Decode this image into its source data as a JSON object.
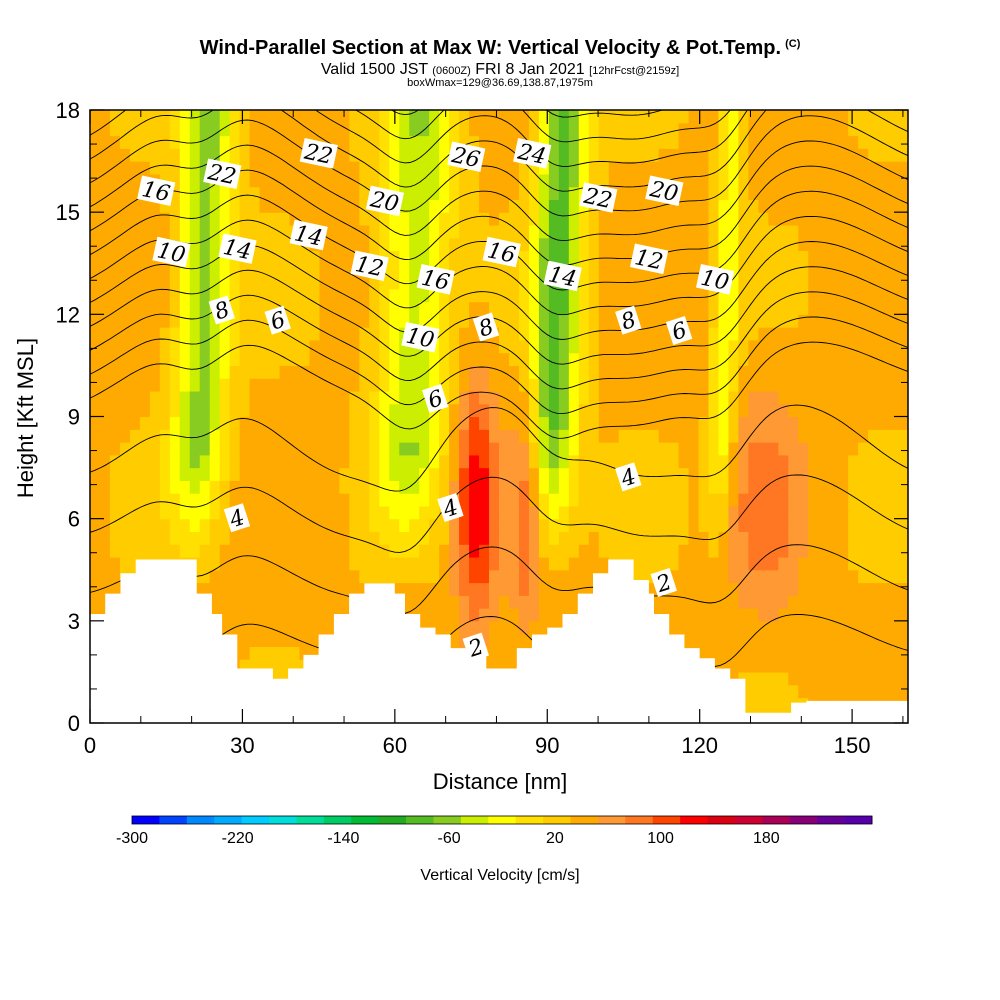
{
  "title": {
    "main": "Wind-Parallel Section at Max W: Vertical Velocity & Pot.Temp.",
    "copyright": "(C)",
    "valid_prefix": "Valid 1500 JST",
    "valid_utc": "(0600Z)",
    "valid_date": "FRI 8 Jan 2021",
    "forecast": "[12hrFcst@2159z]",
    "box_info": "boxWmax=129@36.69,138.87,1975m"
  },
  "chart_data": {
    "type": "heatmap",
    "xlabel": "Distance [nm]",
    "ylabel": "Height [Kft MSL]",
    "xlim": [
      0,
      161
    ],
    "ylim": [
      0,
      18
    ],
    "x_ticks": [
      "0",
      "30",
      "60",
      "90",
      "120",
      "150"
    ],
    "x_tick_values": [
      0,
      30,
      60,
      90,
      120,
      150
    ],
    "y_ticks": [
      "0",
      "3",
      "6",
      "9",
      "12",
      "15",
      "18"
    ],
    "y_tick_values": [
      0,
      3,
      6,
      9,
      12,
      15,
      18
    ],
    "colorbar": {
      "label": "Vertical Velocity [cm/s]",
      "tick_labels": [
        "-300",
        "-220",
        "-140",
        "-60",
        "20",
        "100",
        "180"
      ],
      "tick_values": [
        -300,
        -220,
        -140,
        -60,
        20,
        100,
        180
      ],
      "min": -300,
      "max": 240,
      "step": 20,
      "colors": [
        "#0000ff",
        "#0044ff",
        "#0088ff",
        "#00aaff",
        "#00ccff",
        "#00dddd",
        "#00dd99",
        "#00cc66",
        "#00bb33",
        "#22aa22",
        "#55bb22",
        "#88cc22",
        "#ccee00",
        "#ffff00",
        "#ffe000",
        "#ffcc00",
        "#ffaa00",
        "#ff9933",
        "#ff7722",
        "#ff4400",
        "#ff0000",
        "#dd0011",
        "#cc0033",
        "#aa0055",
        "#880077",
        "#660099",
        "#5500aa"
      ]
    },
    "vertical_velocity_columns": [
      {
        "x": [
          16,
          27
        ],
        "w": -90
      },
      {
        "x": [
          56,
          70
        ],
        "w": -80
      },
      {
        "x": [
          86,
          96
        ],
        "w": -110
      },
      {
        "x": [
          122,
          127
        ],
        "w": -60
      },
      {
        "x": [
          72,
          80
        ],
        "w": 90
      },
      {
        "x": [
          83,
          89
        ],
        "w": 60
      },
      {
        "x": [
          126,
          140
        ],
        "w": 40
      }
    ],
    "contour_labels": [
      {
        "text": "16",
        "x": 13,
        "y": 15.6
      },
      {
        "text": "22",
        "x": 26,
        "y": 16.1
      },
      {
        "text": "22",
        "x": 45,
        "y": 16.7
      },
      {
        "text": "26",
        "x": 74,
        "y": 16.6
      },
      {
        "text": "24",
        "x": 87,
        "y": 16.7
      },
      {
        "text": "20",
        "x": 58,
        "y": 15.3
      },
      {
        "text": "22",
        "x": 100,
        "y": 15.4
      },
      {
        "text": "20",
        "x": 113,
        "y": 15.6
      },
      {
        "text": "10",
        "x": 16,
        "y": 13.8
      },
      {
        "text": "14",
        "x": 29,
        "y": 13.9
      },
      {
        "text": "14",
        "x": 43,
        "y": 14.3
      },
      {
        "text": "12",
        "x": 55,
        "y": 13.4
      },
      {
        "text": "16",
        "x": 68,
        "y": 13.0
      },
      {
        "text": "16",
        "x": 81,
        "y": 13.8
      },
      {
        "text": "14",
        "x": 93,
        "y": 13.1
      },
      {
        "text": "12",
        "x": 110,
        "y": 13.6
      },
      {
        "text": "10",
        "x": 123,
        "y": 13.0
      },
      {
        "text": "8",
        "x": 26,
        "y": 12.1
      },
      {
        "text": "6",
        "x": 37,
        "y": 11.8
      },
      {
        "text": "10",
        "x": 65,
        "y": 11.3
      },
      {
        "text": "8",
        "x": 78,
        "y": 11.6
      },
      {
        "text": "8",
        "x": 106,
        "y": 11.8
      },
      {
        "text": "6",
        "x": 116,
        "y": 11.5
      },
      {
        "text": "6",
        "x": 68,
        "y": 9.5
      },
      {
        "text": "4",
        "x": 29,
        "y": 6.0
      },
      {
        "text": "4",
        "x": 71,
        "y": 6.3
      },
      {
        "text": "4",
        "x": 106,
        "y": 7.2
      },
      {
        "text": "2",
        "x": 113,
        "y": 4.1
      },
      {
        "text": "2",
        "x": 76,
        "y": 2.2
      }
    ],
    "terrain": [
      [
        0,
        3.2
      ],
      [
        3,
        3.2
      ],
      [
        3,
        3.8
      ],
      [
        6,
        3.8
      ],
      [
        6,
        4.4
      ],
      [
        9,
        4.4
      ],
      [
        9,
        4.8
      ],
      [
        21,
        4.8
      ],
      [
        21,
        3.8
      ],
      [
        24,
        3.8
      ],
      [
        24,
        3.2
      ],
      [
        26,
        3.2
      ],
      [
        26,
        2.6
      ],
      [
        29,
        2.6
      ],
      [
        29,
        1.6
      ],
      [
        36,
        1.6
      ],
      [
        36,
        1.3
      ],
      [
        39,
        1.3
      ],
      [
        39,
        1.6
      ],
      [
        42,
        1.6
      ],
      [
        42,
        2.0
      ],
      [
        45,
        2.0
      ],
      [
        45,
        2.6
      ],
      [
        48,
        2.6
      ],
      [
        48,
        3.2
      ],
      [
        51,
        3.2
      ],
      [
        51,
        3.8
      ],
      [
        54,
        3.8
      ],
      [
        54,
        4.1
      ],
      [
        60,
        4.1
      ],
      [
        60,
        3.8
      ],
      [
        62,
        3.8
      ],
      [
        62,
        3.2
      ],
      [
        65,
        3.2
      ],
      [
        65,
        2.8
      ],
      [
        68,
        2.8
      ],
      [
        68,
        2.6
      ],
      [
        71,
        2.6
      ],
      [
        71,
        2.2
      ],
      [
        75,
        2.2
      ],
      [
        75,
        2.0
      ],
      [
        78,
        2.0
      ],
      [
        78,
        1.6
      ],
      [
        84,
        1.6
      ],
      [
        84,
        2.2
      ],
      [
        87,
        2.2
      ],
      [
        87,
        2.6
      ],
      [
        90,
        2.6
      ],
      [
        90,
        2.8
      ],
      [
        93,
        2.8
      ],
      [
        93,
        3.2
      ],
      [
        96,
        3.2
      ],
      [
        96,
        3.8
      ],
      [
        99,
        3.8
      ],
      [
        99,
        4.4
      ],
      [
        102,
        4.4
      ],
      [
        102,
        4.8
      ],
      [
        107,
        4.8
      ],
      [
        107,
        4.2
      ],
      [
        110,
        4.2
      ],
      [
        110,
        3.8
      ],
      [
        111,
        3.8
      ],
      [
        111,
        3.2
      ],
      [
        114,
        3.2
      ],
      [
        114,
        2.6
      ],
      [
        117,
        2.6
      ],
      [
        117,
        2.2
      ],
      [
        120,
        2.2
      ],
      [
        120,
        1.9
      ],
      [
        123,
        1.9
      ],
      [
        123,
        1.6
      ],
      [
        126,
        1.6
      ],
      [
        126,
        1.3
      ],
      [
        129,
        1.3
      ],
      [
        129,
        0.3
      ],
      [
        138,
        0.3
      ],
      [
        138,
        0.6
      ],
      [
        141,
        0.6
      ],
      [
        141,
        0.65
      ],
      [
        161,
        0.65
      ]
    ],
    "grid": false,
    "legend": "colorbar-bottom"
  }
}
